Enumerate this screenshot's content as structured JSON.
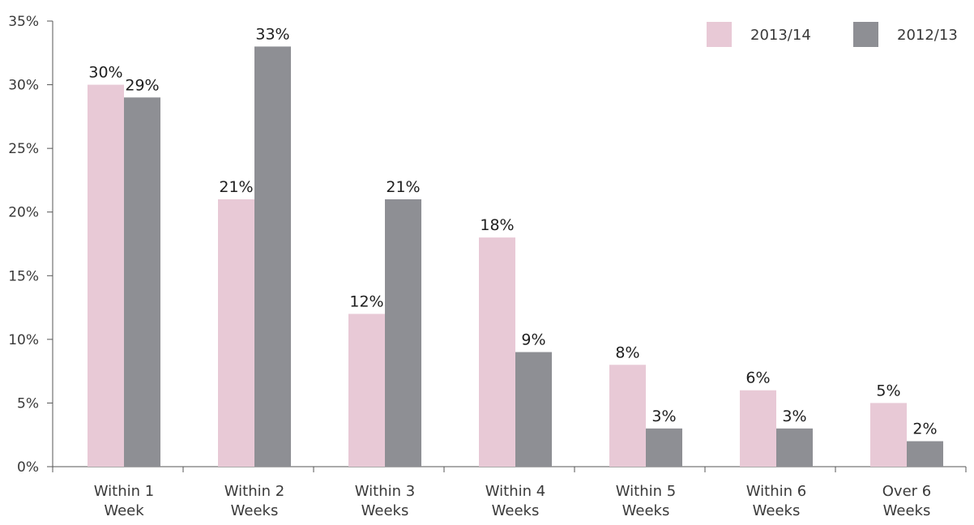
{
  "chart_data": {
    "type": "bar",
    "categories": [
      [
        "Within 1",
        "Week"
      ],
      [
        "Within 2",
        "Weeks"
      ],
      [
        "Within 3",
        "Weeks"
      ],
      [
        "Within 4",
        "Weeks"
      ],
      [
        "Within 5",
        "Weeks"
      ],
      [
        "Within 6",
        "Weeks"
      ],
      [
        "Over 6",
        "Weeks"
      ]
    ],
    "series": [
      {
        "name": "2013/14",
        "color": "#e8c9d6",
        "values": [
          30,
          21,
          12,
          18,
          8,
          6,
          5
        ],
        "labels": [
          "30%",
          "21%",
          "12%",
          "18%",
          "8%",
          "6%",
          "5%"
        ]
      },
      {
        "name": "2012/13",
        "color": "#8e8f94",
        "values": [
          29,
          33,
          21,
          9,
          3,
          3,
          2
        ],
        "labels": [
          "29%",
          "33%",
          "21%",
          "9%",
          "3%",
          "3%",
          "2%"
        ]
      }
    ],
    "ylim": [
      0,
      35
    ],
    "yticks": [
      0,
      5,
      10,
      15,
      20,
      25,
      30,
      35
    ],
    "ytick_labels": [
      "0%",
      "5%",
      "10%",
      "15%",
      "20%",
      "25%",
      "30%",
      "35%"
    ],
    "title": "",
    "xlabel": "",
    "ylabel": "",
    "grid": false,
    "legend_position": "top-right"
  }
}
